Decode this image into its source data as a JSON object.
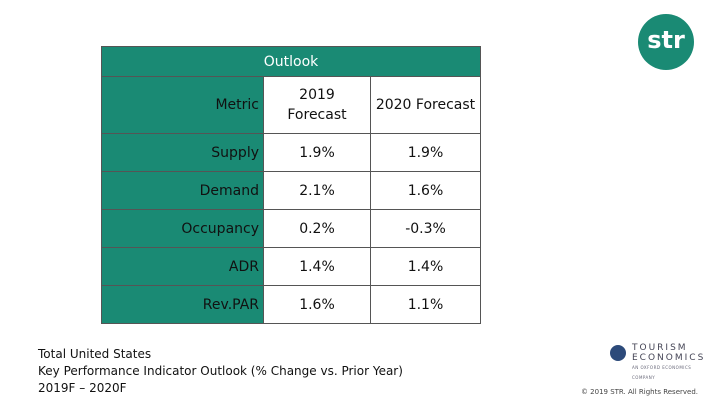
{
  "logo": "str",
  "table": {
    "title": "Outlook",
    "columns": [
      "Metric",
      "2019 Forecast",
      "2020 Forecast"
    ],
    "rows": [
      [
        "Supply",
        "1.9%",
        "1.9%"
      ],
      [
        "Demand",
        "2.1%",
        "1.6%"
      ],
      [
        "Occupancy",
        "0.2%",
        "-0.3%"
      ],
      [
        "ADR",
        "1.4%",
        "1.4%"
      ],
      [
        "Rev.PAR",
        "1.6%",
        "1.1%"
      ]
    ]
  },
  "caption": [
    "Total United States",
    "Key Performance Indicator Outlook (% Change vs. Prior Year)",
    "2019F – 2020F"
  ],
  "partner": {
    "name_line1": "TOURISM",
    "name_line2": "ECONOMICS",
    "tagline": "AN OXFORD ECONOMICS COMPANY"
  },
  "copyright": "© 2019 STR. All Rights Reserved."
}
